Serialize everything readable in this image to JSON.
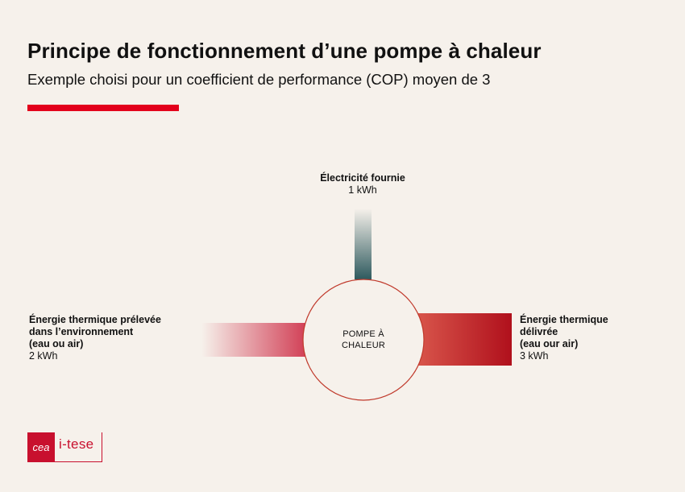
{
  "header": {
    "title": "Principe de fonctionnement d’une pompe à chaleur",
    "subtitle": "Exemple choisi pour un coefficient de performance (COP) moyen de 3"
  },
  "diagram": {
    "center": {
      "line1": "POMPE À",
      "line2": "CHALEUR"
    },
    "input_electricity": {
      "title": "Électricité fournie",
      "value": "1 kWh"
    },
    "input_environment": {
      "line1": "Énergie thermique prélevée",
      "line2": "dans l’environnement",
      "line3": "(eau ou air)",
      "value": "2 kWh"
    },
    "output_heat": {
      "line1": "Énergie thermique",
      "line2": "délivrée",
      "line3": "(eau our air)",
      "value": "3 kWh"
    }
  },
  "logo": {
    "brand": "cea",
    "product": "i-tese"
  },
  "colors": {
    "accent": "#e3001b",
    "electricity_flow": "#2e5a5e",
    "heat_flow": "#b0101c",
    "circle_stroke": "#c0392b",
    "background": "#f6f1eb"
  }
}
